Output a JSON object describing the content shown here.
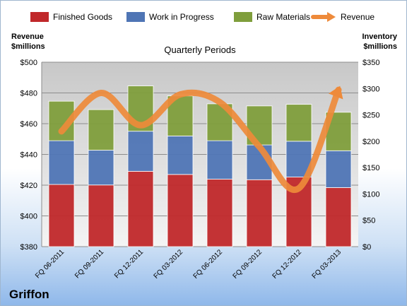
{
  "company": "Griffon",
  "chart_data": {
    "type": "bar",
    "stacked": true,
    "title": "Quarterly Periods",
    "ylabel_left": "Revenue $millions",
    "ylabel_left_lines": [
      "Revenue",
      "$millions"
    ],
    "ylabel_right": "Inventory $millions",
    "ylabel_right_lines": [
      "Inventory",
      "$millions"
    ],
    "categories": [
      "FQ 06-2011",
      "FQ 09-2011",
      "FQ 12-2011",
      "FQ 03-2012",
      "FQ 06-2012",
      "FQ 09-2012",
      "FQ 12-2012",
      "FQ 03-2013"
    ],
    "left_axis": {
      "min": 380,
      "max": 500,
      "ticks": [
        "$380",
        "$400",
        "$420",
        "$440",
        "$460",
        "$480",
        "$500"
      ]
    },
    "right_axis": {
      "min": 0,
      "max": 350,
      "ticks": [
        "$0",
        "$50",
        "$100",
        "$150",
        "$200",
        "$250",
        "$300",
        "$350"
      ]
    },
    "series": [
      {
        "name": "Finished Goods",
        "axis": "right",
        "color": "#c0282a",
        "values": [
          118,
          117,
          143,
          137,
          128,
          127,
          132,
          112
        ]
      },
      {
        "name": "Work in Progress",
        "axis": "right",
        "color": "#4f75b5",
        "values": [
          83,
          66,
          76,
          73,
          73,
          66,
          68,
          70
        ]
      },
      {
        "name": "Raw Materials",
        "axis": "right",
        "color": "#7f9e3c",
        "values": [
          75,
          77,
          86,
          76,
          70,
          74,
          70,
          73
        ]
      },
      {
        "name": "Revenue",
        "axis": "left",
        "type": "line",
        "color": "#ee8a3a",
        "values": [
          455,
          480,
          459,
          479,
          474,
          445,
          418,
          482
        ]
      }
    ],
    "grid": true,
    "legend": "top"
  }
}
